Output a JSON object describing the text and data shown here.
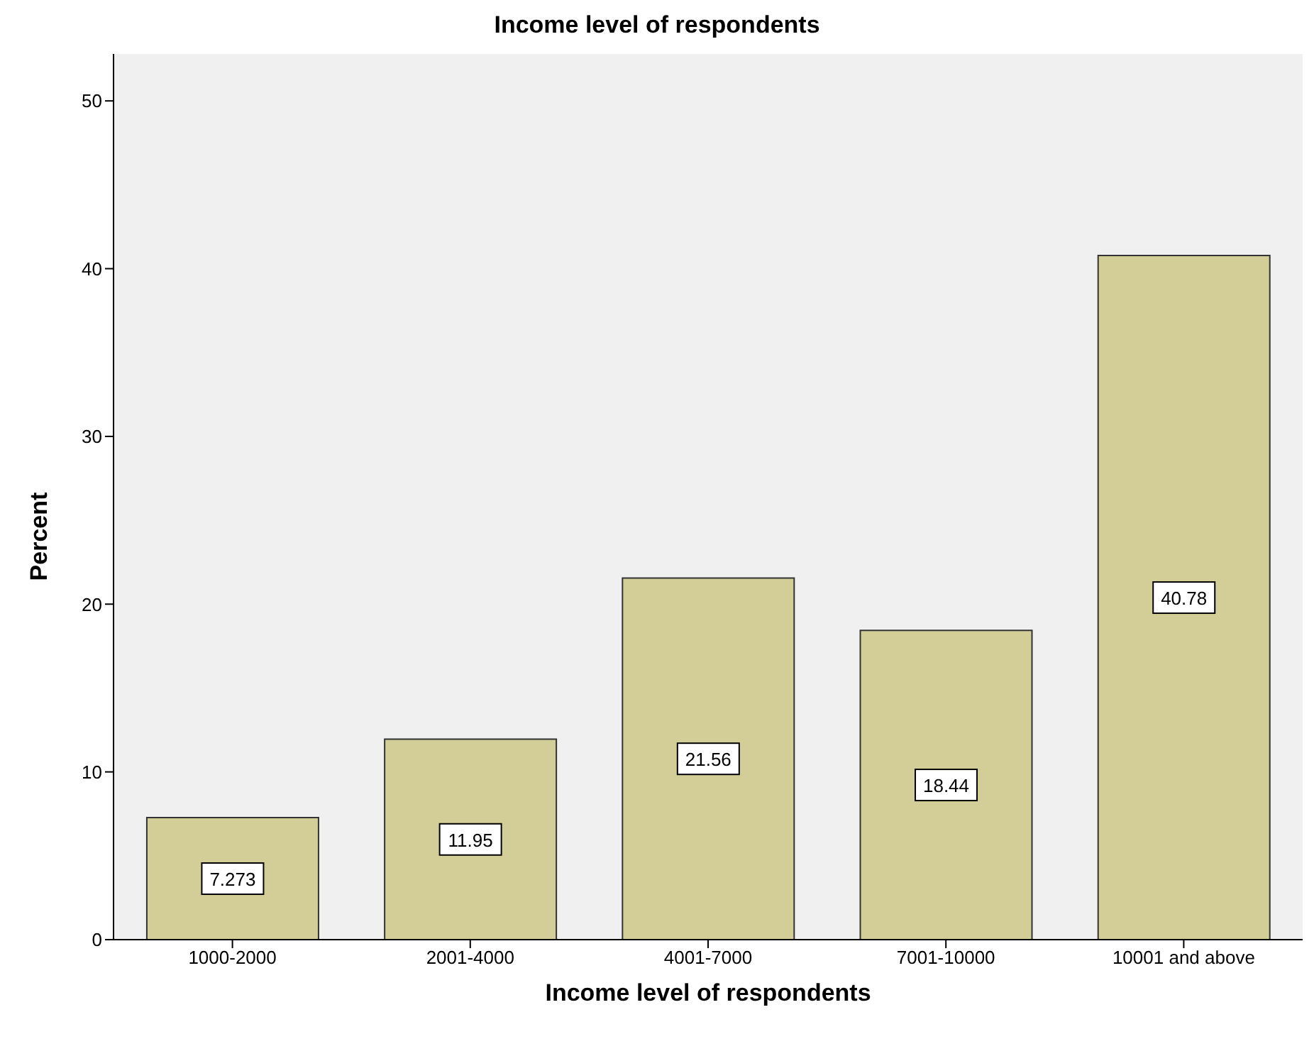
{
  "chart_data": {
    "type": "bar",
    "title": "Income level of respondents",
    "xlabel": "Income level of respondents",
    "ylabel": "Percent",
    "categories": [
      "1000-2000",
      "2001-4000",
      "4001-7000",
      "7001-10000",
      "10001 and above"
    ],
    "values": [
      7.273,
      11.95,
      21.56,
      18.44,
      40.78
    ],
    "color": "#d3ce97",
    "ylim": [
      0,
      52.8
    ],
    "yticks": [
      0,
      10,
      20,
      30,
      40,
      50
    ],
    "grid": false,
    "data_labels": true
  }
}
